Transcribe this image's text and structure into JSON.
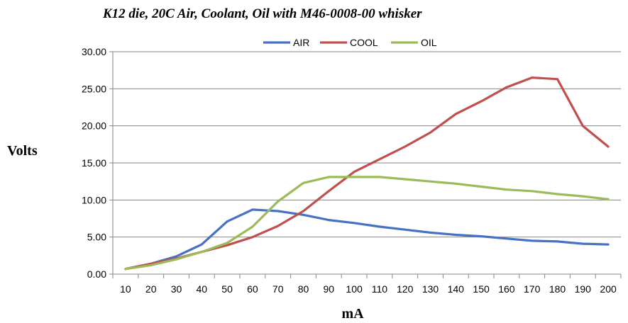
{
  "chart_data": {
    "type": "line",
    "title": "K12 die, 20C Air, Coolant, Oil with M46-0008-00 whisker",
    "xlabel": "mA",
    "ylabel": "Volts",
    "ylim": [
      0,
      30
    ],
    "yticks": [
      "0.00",
      "5.00",
      "10.00",
      "15.00",
      "20.00",
      "25.00",
      "30.00"
    ],
    "categories": [
      "10",
      "20",
      "30",
      "40",
      "50",
      "60",
      "70",
      "80",
      "90",
      "100",
      "110",
      "120",
      "130",
      "140",
      "150",
      "160",
      "170",
      "180",
      "190",
      "200"
    ],
    "legend_position": "top",
    "grid": true,
    "series": [
      {
        "name": "AIR",
        "color": "#4572C4",
        "values": [
          0.7,
          1.4,
          2.4,
          4.0,
          7.1,
          8.7,
          8.5,
          8.0,
          7.3,
          6.9,
          6.4,
          6.0,
          5.6,
          5.3,
          5.1,
          4.8,
          4.5,
          4.4,
          4.1,
          4.0
        ]
      },
      {
        "name": "COOL",
        "color": "#C0504D",
        "values": [
          0.7,
          1.4,
          2.1,
          3.0,
          3.9,
          5.0,
          6.5,
          8.5,
          11.2,
          13.8,
          15.5,
          17.2,
          19.1,
          21.6,
          23.3,
          25.2,
          26.5,
          26.3,
          20.0,
          17.2
        ]
      },
      {
        "name": "OIL",
        "color": "#9BBB59",
        "values": [
          0.7,
          1.2,
          2.0,
          3.0,
          4.2,
          6.4,
          9.8,
          12.3,
          13.1,
          13.1,
          13.1,
          12.8,
          12.5,
          12.2,
          11.8,
          11.4,
          11.2,
          10.8,
          10.5,
          10.1
        ]
      }
    ]
  }
}
